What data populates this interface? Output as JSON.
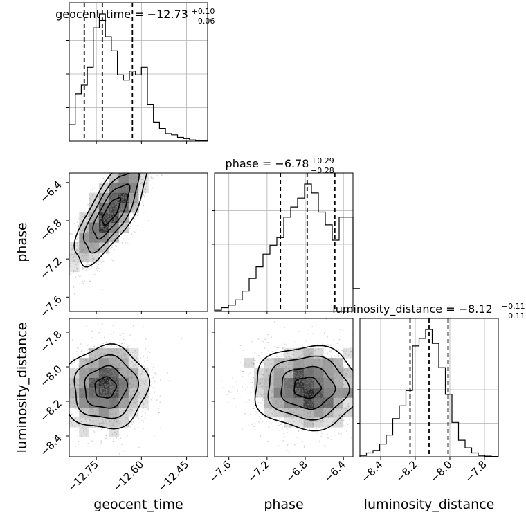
{
  "chart_data": {
    "type": "corner",
    "parameters": [
      "geocent_time",
      "phase",
      "luminosity_distance"
    ],
    "axis_labels": [
      "geocent_time",
      "phase",
      "luminosity_distance"
    ],
    "ranges": {
      "geocent_time": [
        -12.84,
        -12.38
      ],
      "phase": [
        -7.75,
        -6.3
      ],
      "luminosity_distance": [
        -8.52,
        -7.72
      ]
    },
    "ticks": {
      "geocent_time": [
        -12.75,
        -12.6,
        -12.45
      ],
      "phase_y": [
        -6.4,
        -6.8,
        -7.2,
        -7.6
      ],
      "phase_x": [
        -7.6,
        -7.2,
        -6.8,
        -6.4
      ],
      "luminosity_distance": [
        -7.8,
        -8.0,
        -8.2,
        -8.4
      ]
    },
    "tick_labels": {
      "geocent_time": [
        "−12.75",
        "−12.60",
        "−12.45"
      ],
      "phase_y": [
        "−6.4",
        "−6.8",
        "−7.2",
        "−7.6"
      ],
      "phase_x": [
        "−7.6",
        "−7.2",
        "−6.8",
        "−6.4"
      ],
      "luminosity_distance_y": [
        "−7.8",
        "−8.0",
        "−8.2",
        "−8.4"
      ],
      "luminosity_distance_x": [
        "−8.4",
        "−8.2",
        "−8.0",
        "−7.8"
      ]
    },
    "titles": [
      {
        "param": "geocent_time",
        "prefix": "geocent_time = ",
        "median": "−12.73",
        "plus": "+0.10",
        "minus": "−0.06"
      },
      {
        "param": "phase",
        "prefix": "phase = ",
        "median": "−6.78",
        "plus": "+0.29",
        "minus": "−0.28"
      },
      {
        "param": "luminosity_distance",
        "prefix": "luminosity_distance = ",
        "median": "−8.12",
        "plus": "+0.11",
        "minus": "−0.11"
      }
    ],
    "quantiles": {
      "geocent_time": [
        -12.79,
        -12.73,
        -12.63
      ],
      "phase": [
        -7.06,
        -6.78,
        -6.49
      ],
      "luminosity_distance": [
        -8.23,
        -8.12,
        -8.01
      ]
    },
    "histograms": {
      "geocent_time": {
        "start": -12.84,
        "step": 0.02,
        "counts": [
          0.13,
          0.37,
          0.44,
          0.58,
          0.89,
          1.0,
          0.82,
          0.71,
          0.52,
          0.48,
          0.55,
          0.52,
          0.58,
          0.29,
          0.15,
          0.1,
          0.06,
          0.05,
          0.03,
          0.02,
          0.01,
          0.005,
          0.003
        ]
      },
      "phase": {
        "start": -7.75,
        "step": 0.0725,
        "counts": [
          0.01,
          0.03,
          0.05,
          0.09,
          0.16,
          0.26,
          0.35,
          0.45,
          0.52,
          0.58,
          0.74,
          0.82,
          0.89,
          1.0,
          0.93,
          0.78,
          0.68,
          0.56,
          0.74,
          0.74,
          0.18
        ]
      },
      "luminosity_distance": {
        "start": -8.52,
        "step": 0.038,
        "counts": [
          0.01,
          0.03,
          0.05,
          0.1,
          0.17,
          0.3,
          0.4,
          0.52,
          0.87,
          0.93,
          1.0,
          0.89,
          0.7,
          0.49,
          0.27,
          0.13,
          0.07,
          0.03,
          0.01,
          0.005,
          0.002
        ]
      }
    },
    "pairs": [
      {
        "x": "geocent_time",
        "y": "phase",
        "center": [
          -12.7,
          -6.7
        ],
        "sd": [
          0.06,
          0.28
        ],
        "rho": 0.75,
        "points": 2200
      },
      {
        "x": "geocent_time",
        "y": "luminosity_distance",
        "center": [
          -12.72,
          -8.12
        ],
        "sd": [
          0.07,
          0.12
        ],
        "rho": 0.05,
        "points": 2200
      },
      {
        "x": "phase",
        "y": "luminosity_distance",
        "center": [
          -6.78,
          -8.12
        ],
        "sd": [
          0.28,
          0.12
        ],
        "rho": 0.0,
        "points": 2200
      }
    ],
    "grid": true
  }
}
